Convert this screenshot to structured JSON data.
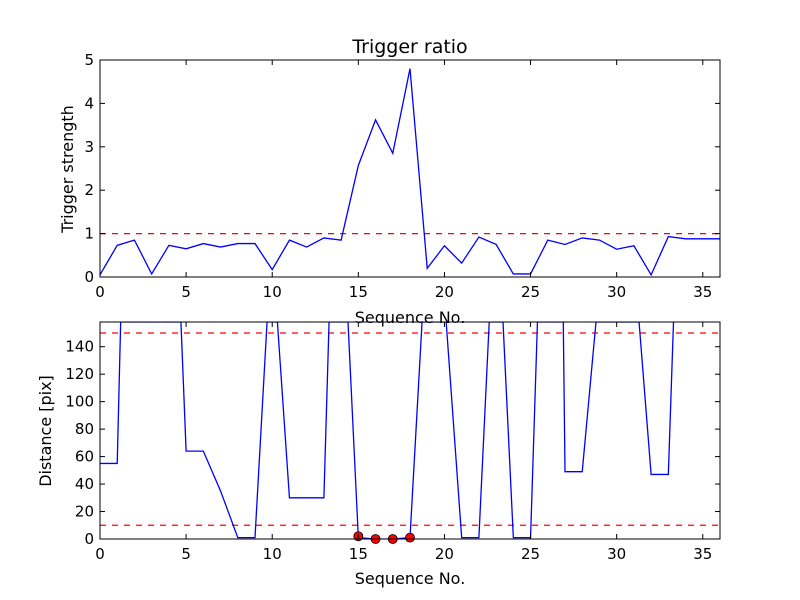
{
  "chart_data": [
    {
      "type": "line",
      "title": "Trigger ratio",
      "xlabel": "Sequence No.",
      "ylabel": "Trigger strength",
      "xlim": [
        0,
        36
      ],
      "ylim": [
        0,
        5
      ],
      "xticks": [
        "0",
        "5",
        "10",
        "15",
        "20",
        "25",
        "30",
        "35"
      ],
      "yticks": [
        "0",
        "1",
        "2",
        "3",
        "4",
        "5"
      ],
      "grid": false,
      "line_color": "#0000ff",
      "threshold_color": "#ff0000",
      "thresholds": [
        1.0
      ],
      "series": [
        {
          "x": [
            0,
            1,
            2,
            3,
            4,
            5,
            6,
            7,
            8,
            9,
            10,
            11,
            12,
            13,
            14,
            15,
            16,
            17,
            18,
            19,
            20,
            21,
            22,
            23,
            24,
            25,
            26,
            27,
            28,
            29,
            30,
            31,
            32,
            33,
            34,
            35,
            36
          ],
          "values": [
            0.05,
            0.73,
            0.85,
            0.07,
            0.73,
            0.65,
            0.77,
            0.69,
            0.77,
            0.77,
            0.17,
            0.85,
            0.69,
            0.9,
            0.85,
            2.57,
            3.62,
            2.85,
            4.8,
            0.2,
            0.72,
            0.32,
            0.92,
            0.75,
            0.07,
            0.07,
            0.85,
            0.75,
            0.9,
            0.85,
            0.64,
            0.72,
            0.05,
            0.93,
            0.88,
            0.88,
            0.88
          ]
        }
      ]
    },
    {
      "type": "line",
      "title": "",
      "xlabel": "Sequence No.",
      "ylabel": "Distance [pix]",
      "xlim": [
        0,
        36
      ],
      "ylim": [
        0,
        158
      ],
      "xticks": [
        "0",
        "5",
        "10",
        "15",
        "20",
        "25",
        "30",
        "35"
      ],
      "yticks": [
        "0",
        "20",
        "40",
        "60",
        "80",
        "100",
        "120",
        "140"
      ],
      "grid": false,
      "line_color": "#0000ff",
      "threshold_color": "#ff0000",
      "marker_color": "#ff0000",
      "thresholds": [
        10,
        150
      ],
      "series": [
        {
          "x": [
            0,
            1,
            1.2,
            4.7,
            5,
            6,
            7,
            8,
            9,
            9.7,
            10.3,
            11,
            12,
            13,
            13.3,
            14.4,
            15,
            16,
            17,
            18,
            18.7,
            20.1,
            21,
            22,
            22.6,
            23.4,
            24,
            25,
            25.4,
            26.9,
            27,
            28,
            28.8,
            31.3,
            32,
            33,
            33.3
          ],
          "values": [
            55,
            55,
            158,
            158,
            64,
            64,
            35,
            1,
            1,
            158,
            158,
            30,
            30,
            30,
            158,
            158,
            1,
            0,
            0,
            1,
            158,
            158,
            1,
            1,
            158,
            158,
            1,
            1,
            158,
            158,
            49,
            49,
            158,
            158,
            47,
            47,
            158
          ]
        }
      ],
      "markers": [
        {
          "x": 15,
          "y": 2
        },
        {
          "x": 16,
          "y": 0
        },
        {
          "x": 17,
          "y": 0
        },
        {
          "x": 18,
          "y": 1
        }
      ]
    }
  ]
}
